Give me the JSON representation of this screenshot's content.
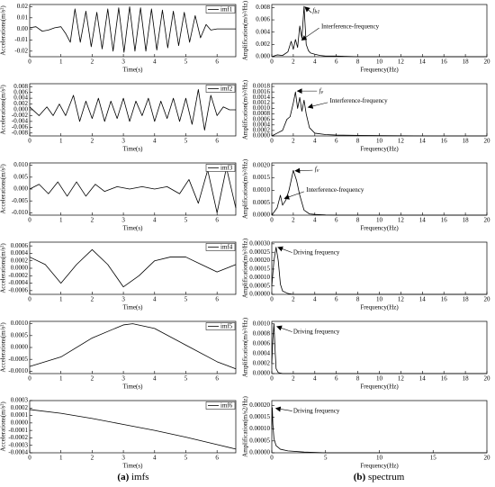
{
  "chart_data": [
    {
      "type": "line",
      "xlabel": "Time(s)",
      "ylabel": "Accelerations(m/s²)",
      "x": [
        0,
        0.2,
        0.4,
        0.6,
        0.8,
        1.0,
        1.15,
        1.3,
        1.45,
        1.62,
        1.8,
        1.97,
        2.15,
        2.32,
        2.5,
        2.67,
        2.85,
        3.02,
        3.2,
        3.37,
        3.55,
        3.72,
        3.9,
        4.07,
        4.25,
        4.42,
        4.6,
        4.77,
        4.95,
        5.12,
        5.3,
        5.47,
        5.65,
        5.8,
        6.0,
        6.2,
        6.4,
        6.6
      ],
      "series": [
        {
          "name": "imf1",
          "color": "#000000",
          "values": [
            0.001,
            0.002,
            -0.002,
            -0.001,
            0.001,
            0.002,
            -0.004,
            -0.012,
            0.018,
            -0.012,
            0.016,
            -0.016,
            0.015,
            -0.018,
            0.018,
            -0.02,
            0.019,
            -0.021,
            0.02,
            -0.02,
            0.019,
            -0.02,
            0.018,
            -0.019,
            0.017,
            -0.017,
            0.016,
            -0.015,
            0.015,
            -0.012,
            0.012,
            -0.008,
            0.004,
            -0.001,
            0,
            0,
            0,
            0
          ]
        }
      ],
      "xlim": [
        0,
        6.6
      ],
      "xticks": [
        0,
        1,
        2,
        3,
        4,
        5,
        6
      ],
      "ylim": [
        -0.025,
        0.022
      ],
      "yticks": [
        -0.02,
        -0.01,
        {
          "value": 0,
          "label": "0.00"
        },
        0.01,
        0.02
      ]
    },
    {
      "type": "line",
      "xlabel": "Time(s)",
      "ylabel": "Accelerations(m/s²)",
      "x": [
        0,
        0.3,
        0.55,
        0.75,
        0.95,
        1.15,
        1.4,
        1.6,
        1.8,
        2.0,
        2.2,
        2.4,
        2.6,
        2.8,
        3.0,
        3.2,
        3.4,
        3.6,
        3.8,
        4.0,
        4.2,
        4.4,
        4.6,
        4.8,
        5.0,
        5.2,
        5.4,
        5.6,
        5.8,
        6.0,
        6.2,
        6.4,
        6.6
      ],
      "series": [
        {
          "name": "imf2",
          "color": "#000000",
          "values": [
            0.001,
            -0.002,
            0.001,
            -0.002,
            0.002,
            -0.002,
            0.005,
            -0.004,
            0.003,
            -0.003,
            0.004,
            -0.004,
            0.003,
            -0.003,
            0.004,
            -0.004,
            0.003,
            -0.002,
            0.004,
            -0.004,
            0.003,
            -0.003,
            0.004,
            -0.004,
            0.004,
            -0.005,
            0.007,
            -0.007,
            0.005,
            -0.002,
            0.001,
            0,
            0
          ]
        }
      ],
      "xlim": [
        0,
        6.6
      ],
      "xticks": [
        0,
        1,
        2,
        3,
        4,
        5,
        6
      ],
      "ylim": [
        -0.009,
        0.009
      ],
      "yticks": [
        -0.008,
        -0.006,
        -0.004,
        -0.002,
        {
          "value": 0,
          "label": "0.000"
        },
        0.002,
        0.004,
        0.006,
        0.008
      ]
    },
    {
      "type": "line",
      "xlabel": "Time(s)",
      "ylabel": "Accelerations(m/s²)",
      "x": [
        0,
        0.3,
        0.6,
        0.9,
        1.2,
        1.5,
        1.8,
        2.1,
        2.4,
        2.8,
        3.2,
        3.6,
        4.0,
        4.4,
        4.8,
        5.1,
        5.4,
        5.7,
        6.0,
        6.3,
        6.6
      ],
      "series": [
        {
          "name": "imf3",
          "color": "#000000",
          "values": [
            0,
            0.002,
            -0.002,
            0.003,
            -0.003,
            0.003,
            -0.003,
            0.002,
            -0.001,
            0.001,
            0,
            0.001,
            0,
            0.001,
            -0.002,
            0.004,
            -0.006,
            0.008,
            -0.01,
            0.009,
            -0.008
          ]
        }
      ],
      "xlim": [
        0,
        6.6
      ],
      "xticks": [
        0,
        1,
        2,
        3,
        4,
        5,
        6
      ],
      "ylim": [
        -0.011,
        0.011
      ],
      "yticks": [
        {
          "value": -0.01,
          "label": "-0.010"
        },
        -0.005,
        {
          "value": 0,
          "label": "0.000"
        },
        0.005,
        {
          "value": 0.01,
          "label": "0.010"
        }
      ]
    },
    {
      "type": "line",
      "xlabel": "Time(s)",
      "ylabel": "Accelerations(m/s²)",
      "x": [
        0,
        0.5,
        1.0,
        1.5,
        2.0,
        2.5,
        3.0,
        3.5,
        4.0,
        4.5,
        5.0,
        5.5,
        6.0,
        6.6
      ],
      "series": [
        {
          "name": "imf4",
          "color": "#000000",
          "values": [
            0.0003,
            0.0001,
            -0.0004,
            0.0001,
            0.0005,
            0.0001,
            -0.0005,
            -0.0002,
            0.0002,
            0.0003,
            0.0003,
            0.0001,
            -0.0001,
            0.0001
          ]
        }
      ],
      "xlim": [
        0,
        6.6
      ],
      "xticks": [
        0,
        1,
        2,
        3,
        4,
        5,
        6
      ],
      "ylim": [
        -0.0007,
        0.0007
      ],
      "yticks": [
        -0.0006,
        -0.0004,
        -0.0002,
        {
          "value": 0,
          "label": "0.0000"
        },
        0.0002,
        0.0004,
        0.0006
      ]
    },
    {
      "type": "line",
      "xlabel": "Time(s)",
      "ylabel": "Accelerations(m/s²)",
      "x": [
        0,
        1,
        2,
        3,
        3.3,
        4,
        5,
        6,
        6.6
      ],
      "series": [
        {
          "name": "imf5",
          "color": "#000000",
          "values": [
            -0.0008,
            -0.0004,
            0.0004,
            0.00095,
            0.001,
            0.0008,
            0.0001,
            -0.0006,
            -0.0009
          ]
        }
      ],
      "xlim": [
        0,
        6.6
      ],
      "xticks": [
        0,
        1,
        2,
        3,
        4,
        5,
        6
      ],
      "ylim": [
        -0.0011,
        0.0011
      ],
      "yticks": [
        {
          "value": -0.001,
          "label": "-0.0010"
        },
        -0.0005,
        {
          "value": 0,
          "label": "0.0000"
        },
        0.0005,
        {
          "value": 0.001,
          "label": "0.0010"
        }
      ]
    },
    {
      "type": "line",
      "xlabel": "Time(s)",
      "ylabel": "Accelerations(m/s²)",
      "x": [
        0,
        1,
        2,
        3,
        4,
        5,
        6,
        6.6
      ],
      "series": [
        {
          "name": "imf6",
          "color": "#000000",
          "values": [
            0.00018,
            0.00013,
            6e-05,
            -2e-05,
            -0.0001,
            -0.00019,
            -0.00029,
            -0.00035
          ]
        }
      ],
      "xlim": [
        0,
        6.6
      ],
      "xticks": [
        0,
        1,
        2,
        3,
        4,
        5,
        6
      ],
      "ylim": [
        -0.0004,
        0.0003
      ],
      "yticks": [
        -0.0004,
        -0.0003,
        -0.0002,
        -0.0001,
        {
          "value": 0,
          "label": "0.0000"
        },
        0.0001,
        0.0002,
        0.0003
      ]
    },
    {
      "type": "line",
      "xlabel": "Frequency(Hz)",
      "ylabel": "Amplification(m/s²/Hz)",
      "color": "#000000",
      "x": [
        0,
        0.5,
        1.0,
        1.5,
        1.8,
        2.0,
        2.2,
        2.4,
        2.6,
        2.8,
        3.0,
        3.2,
        3.4,
        3.6,
        4.0,
        4.5,
        5,
        6,
        8,
        10,
        12,
        15,
        20
      ],
      "values": [
        0,
        0.0003,
        0.0002,
        0.0008,
        0.0025,
        0.0012,
        0.0028,
        0.0015,
        0.005,
        0.003,
        0.0082,
        0.002,
        0.001,
        0.0006,
        0.0004,
        0.0002,
        0.0001,
        0.0001,
        0,
        0,
        0,
        0,
        0
      ],
      "xlim": [
        0,
        20
      ],
      "xticks": [
        0,
        2,
        4,
        6,
        8,
        10,
        12,
        14,
        16,
        18,
        20
      ],
      "ylim": [
        0,
        0.0085
      ],
      "yticks": [
        {
          "value": 0,
          "label": "0.000"
        },
        0.002,
        0.004,
        0.006,
        0.008
      ],
      "annotations": [
        {
          "text": "f",
          "sub": "b1"
        },
        {
          "text": "Interference-frequency"
        }
      ]
    },
    {
      "type": "line",
      "xlabel": "Frequency(Hz)",
      "ylabel": "Amplification(m/s²/Hz)",
      "color": "#000000",
      "x": [
        0,
        0.5,
        1.0,
        1.4,
        1.7,
        2.0,
        2.2,
        2.4,
        2.6,
        2.8,
        3.0,
        3.2,
        3.5,
        4,
        5,
        6,
        8,
        10,
        15,
        20
      ],
      "values": [
        0,
        0.0001,
        0.0002,
        0.0006,
        0.0007,
        0.0012,
        0.0016,
        0.001,
        0.0014,
        0.0009,
        0.0013,
        0.0008,
        0.0003,
        0.0001,
        5e-05,
        3e-05,
        2e-05,
        1e-05,
        0,
        0
      ],
      "xlim": [
        0,
        20
      ],
      "xticks": [
        0,
        2,
        4,
        6,
        8,
        10,
        12,
        14,
        16,
        18,
        20
      ],
      "ylim": [
        0,
        0.0019
      ],
      "yticks": [
        {
          "value": 0,
          "label": "0.0000"
        },
        0.0002,
        0.0004,
        0.0006,
        0.0008,
        {
          "value": 0.001,
          "label": "0.0010"
        },
        0.0012,
        0.0014,
        0.0016,
        0.0018
      ],
      "annotations": [
        {
          "text": "f",
          "sub": "v"
        },
        {
          "text": "Interference-frequency"
        }
      ]
    },
    {
      "type": "line",
      "xlabel": "Frequency(Hz)",
      "ylabel": "Amplification(m/s²/Hz)",
      "color": "#000000",
      "x": [
        0,
        0.5,
        0.8,
        1.0,
        1.3,
        1.6,
        2.0,
        2.3,
        2.6,
        3.0,
        3.5,
        4,
        5,
        6,
        8,
        10,
        15,
        20
      ],
      "values": [
        0,
        0.0003,
        0.0008,
        0.0004,
        0.0006,
        0.001,
        0.0018,
        0.0014,
        0.0008,
        0.0002,
        5e-05,
        3e-05,
        1e-05,
        0,
        0,
        0,
        0,
        0
      ],
      "xlim": [
        0,
        20
      ],
      "xticks": [
        0,
        2,
        4,
        6,
        8,
        10,
        12,
        14,
        16,
        18,
        20
      ],
      "ylim": [
        0,
        0.0021
      ],
      "yticks": [
        {
          "value": 0,
          "label": "0.0000"
        },
        0.0005,
        {
          "value": 0.001,
          "label": "0.0010"
        },
        0.0015,
        {
          "value": 0.002,
          "label": "0.0020"
        }
      ],
      "annotations": [
        {
          "text": "f",
          "sub": "v"
        },
        {
          "text": "Interference-frequency"
        }
      ]
    },
    {
      "type": "line",
      "xlabel": "Frequency(Hz)",
      "ylabel": "Amplification(m/s²/Hz)",
      "color": "#000000",
      "x": [
        0,
        0.2,
        0.4,
        0.6,
        0.8,
        1.0,
        1.5,
        2,
        3,
        5,
        10,
        20
      ],
      "values": [
        5e-05,
        0.0002,
        0.00028,
        0.0002,
        6e-05,
        2e-05,
        5e-06,
        0,
        0,
        0,
        0,
        0
      ],
      "xlim": [
        0,
        20
      ],
      "xticks": [
        0,
        2,
        4,
        6,
        8,
        10,
        12,
        14,
        16,
        18,
        20
      ],
      "ylim": [
        0,
        0.00031
      ],
      "yticks": [
        {
          "value": 0,
          "label": "0.00000"
        },
        5e-05,
        {
          "value": 0.0001,
          "label": "0.00010"
        },
        0.00015,
        {
          "value": 0.0002,
          "label": "0.00020"
        },
        0.00025,
        {
          "value": 0.0003,
          "label": "0.00030"
        }
      ],
      "annotations": [
        {
          "text": "Driving frequency"
        }
      ]
    },
    {
      "type": "line",
      "xlabel": "Frequency(Hz)",
      "ylabel": "Amplification(m/s²/Hz)",
      "color": "#000000",
      "x": [
        0,
        0.1,
        0.2,
        0.3,
        0.4,
        0.6,
        1,
        2,
        5,
        20
      ],
      "values": [
        0.0002,
        0.0007,
        0.001,
        0.0005,
        0.0001,
        2e-05,
        0,
        0,
        0,
        0
      ],
      "xlim": [
        0,
        20
      ],
      "xticks": [
        0,
        2,
        4,
        6,
        8,
        10,
        12,
        14,
        16,
        18,
        20
      ],
      "ylim": [
        0,
        0.00105
      ],
      "yticks": [
        {
          "value": 0,
          "label": "0.0000"
        },
        0.0002,
        0.0004,
        0.0006,
        0.0008,
        {
          "value": 0.001,
          "label": "0.0010"
        }
      ],
      "annotations": [
        {
          "text": "Driving frequency"
        }
      ]
    },
    {
      "type": "line",
      "xlabel": "Frequency(Hz)",
      "ylabel": "Amplification(m/s2/Hz)",
      "color": "#000000",
      "x": [
        0,
        0.05,
        0.1,
        0.2,
        0.4,
        0.8,
        1.5,
        3,
        5,
        10,
        20
      ],
      "values": [
        0.0001,
        0.00019,
        0.00012,
        6e-05,
        3e-05,
        1.5e-05,
        8e-06,
        3e-06,
        0,
        0,
        0
      ],
      "xlim": [
        0,
        20
      ],
      "xticks": [
        0,
        5,
        10,
        15,
        20
      ],
      "ylim": [
        0,
        0.00022
      ],
      "yticks": [
        {
          "value": 0,
          "label": "0.00000"
        },
        5e-05,
        {
          "value": 0.0001,
          "label": "0.00010"
        },
        0.00015,
        {
          "value": 0.0002,
          "label": "0.00020"
        }
      ],
      "annotations": [
        {
          "text": "Driving frequency"
        }
      ]
    }
  ],
  "captions": [
    {
      "label": "(a)",
      "text": "imfs"
    },
    {
      "label": "(b)",
      "text": "spectrum"
    }
  ]
}
